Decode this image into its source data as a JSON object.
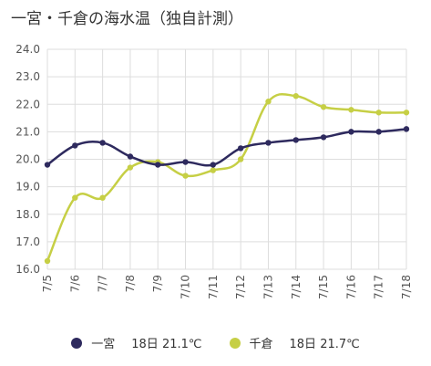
{
  "title": "一宮・千倉の海水温（独自計測）",
  "chart_data": {
    "type": "line",
    "title": "一宮・千倉の海水温（独自計測）",
    "categories": [
      "7/5",
      "7/6",
      "7/7",
      "7/8",
      "7/9",
      "7/10",
      "7/11",
      "7/12",
      "7/13",
      "7/14",
      "7/15",
      "7/16",
      "7/17",
      "7/18"
    ],
    "ylim": [
      16.0,
      24.0
    ],
    "yticks": [
      "16.0",
      "17.0",
      "18.0",
      "19.0",
      "20.0",
      "21.0",
      "22.0",
      "23.0",
      "24.0"
    ],
    "grid": true,
    "legend_position": "bottom",
    "series": [
      {
        "name": "一宮",
        "color": "#2e2a5e",
        "values": [
          19.8,
          20.5,
          20.6,
          20.1,
          19.8,
          19.9,
          19.8,
          20.4,
          20.6,
          20.7,
          20.8,
          21.0,
          21.0,
          21.1
        ]
      },
      {
        "name": "千倉",
        "color": "#c6cf45",
        "values": [
          16.3,
          18.6,
          18.6,
          19.7,
          19.9,
          19.4,
          19.6,
          20.0,
          22.1,
          22.3,
          21.9,
          21.8,
          21.7,
          21.7
        ]
      }
    ]
  },
  "legend": [
    {
      "label": "一宮",
      "value": "18日 21.1℃",
      "color": "#2e2a5e"
    },
    {
      "label": "千倉",
      "value": "18日 21.7℃",
      "color": "#c6cf45"
    }
  ]
}
